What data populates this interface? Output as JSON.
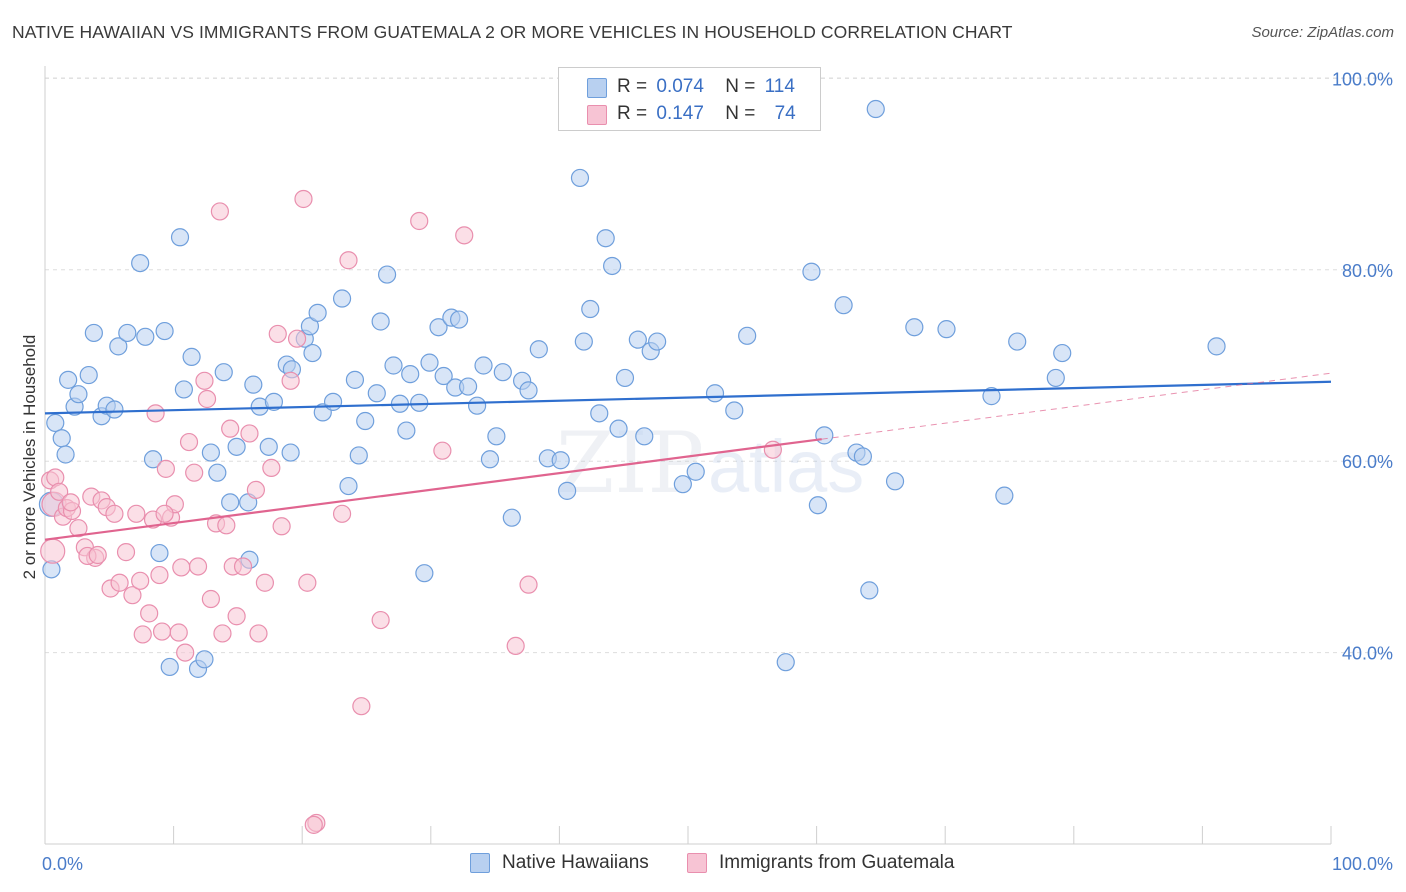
{
  "title": "NATIVE HAWAIIAN VS IMMIGRANTS FROM GUATEMALA 2 OR MORE VEHICLES IN HOUSEHOLD CORRELATION CHART",
  "source": "Source: ZipAtlas.com",
  "watermark": {
    "zip": "ZIP",
    "atlas": "atlas"
  },
  "colors": {
    "blue_fill": "#b8d0f0",
    "blue_stroke": "#6f9fdc",
    "blue_line": "#2f6fce",
    "pink_fill": "#f7c4d4",
    "pink_stroke": "#e98fae",
    "pink_line": "#e0648f",
    "grid": "#dddddd",
    "tick_label": "#4a7cc9"
  },
  "legend": {
    "rows": [
      {
        "r_label": "R =",
        "r_value": "0.074",
        "n_label": "N =",
        "n_value": "114"
      },
      {
        "r_label": "R =",
        "r_value": "0.147",
        "n_label": "N =",
        "n_value": "74"
      }
    ]
  },
  "bottom_legend": [
    "Native Hawaiians",
    "Immigrants from Guatemala"
  ],
  "chart_data": {
    "type": "scatter",
    "title": "NATIVE HAWAIIAN VS IMMIGRANTS FROM GUATEMALA 2 OR MORE VEHICLES IN HOUSEHOLD CORRELATION CHART",
    "xlabel": "",
    "ylabel": "2 or more Vehicles in Household",
    "xlim": [
      0,
      100
    ],
    "ylim": [
      20,
      102
    ],
    "x_tick_labels": [
      "0.0%",
      "100.0%"
    ],
    "y_ticks": [
      40,
      60,
      80,
      100
    ],
    "y_tick_labels": [
      "40.0%",
      "60.0%",
      "80.0%",
      "100.0%"
    ],
    "grid": true,
    "legend_position": "top-center",
    "series": [
      {
        "name": "Native Hawaiians",
        "r": 0.074,
        "n": 114,
        "trend": {
          "x": [
            0,
            100
          ],
          "y": [
            65.0,
            68.3
          ]
        },
        "points": [
          [
            0.5,
            55.5
          ],
          [
            0.8,
            64
          ],
          [
            1.3,
            62.4
          ],
          [
            1.8,
            68.5
          ],
          [
            2.3,
            65.7
          ],
          [
            2.6,
            67
          ],
          [
            3.4,
            69
          ],
          [
            3.8,
            73.4
          ],
          [
            4.4,
            64.7
          ],
          [
            4.8,
            65.8
          ],
          [
            5.4,
            65.4
          ],
          [
            5.7,
            72
          ],
          [
            6.4,
            73.4
          ],
          [
            7.4,
            80.7
          ],
          [
            7.8,
            73
          ],
          [
            8.4,
            60.2
          ],
          [
            8.9,
            50.4
          ],
          [
            9.3,
            73.6
          ],
          [
            9.7,
            38.5
          ],
          [
            10.5,
            83.4
          ],
          [
            10.8,
            67.5
          ],
          [
            11.4,
            70.9
          ],
          [
            11.9,
            38.3
          ],
          [
            12.4,
            39.3
          ],
          [
            12.9,
            60.9
          ],
          [
            13.4,
            58.8
          ],
          [
            13.9,
            69.3
          ],
          [
            14.4,
            55.7
          ],
          [
            14.9,
            61.5
          ],
          [
            15.8,
            55.7
          ],
          [
            15.9,
            49.7
          ],
          [
            16.2,
            68
          ],
          [
            16.7,
            65.7
          ],
          [
            17.4,
            61.5
          ],
          [
            17.8,
            66.2
          ],
          [
            18.8,
            70.1
          ],
          [
            19.1,
            60.9
          ],
          [
            19.2,
            69.6
          ],
          [
            20.2,
            72.8
          ],
          [
            20.6,
            74.1
          ],
          [
            20.8,
            71.3
          ],
          [
            21.2,
            75.5
          ],
          [
            21.6,
            65.1
          ],
          [
            22.4,
            66.2
          ],
          [
            23.1,
            77
          ],
          [
            23.6,
            57.4
          ],
          [
            24.1,
            68.5
          ],
          [
            24.4,
            60.6
          ],
          [
            24.9,
            64.2
          ],
          [
            25.8,
            67.1
          ],
          [
            26.1,
            74.6
          ],
          [
            26.6,
            79.5
          ],
          [
            27.1,
            70
          ],
          [
            27.6,
            66
          ],
          [
            28.1,
            63.2
          ],
          [
            28.4,
            69.1
          ],
          [
            29.1,
            66.1
          ],
          [
            29.5,
            48.3
          ],
          [
            29.9,
            70.3
          ],
          [
            30.6,
            74
          ],
          [
            31.0,
            68.9
          ],
          [
            31.6,
            75
          ],
          [
            31.9,
            67.7
          ],
          [
            32.2,
            74.8
          ],
          [
            32.9,
            67.8
          ],
          [
            33.6,
            65.8
          ],
          [
            34.1,
            70
          ],
          [
            34.6,
            60.2
          ],
          [
            35.1,
            62.6
          ],
          [
            35.6,
            69.3
          ],
          [
            36.3,
            54.1
          ],
          [
            37.1,
            68.4
          ],
          [
            37.6,
            67.4
          ],
          [
            38.4,
            71.7
          ],
          [
            39.1,
            60.3
          ],
          [
            40.1,
            60.1
          ],
          [
            40.6,
            56.9
          ],
          [
            41.6,
            89.6
          ],
          [
            41.9,
            72.5
          ],
          [
            42.4,
            75.9
          ],
          [
            43.1,
            65
          ],
          [
            43.6,
            83.3
          ],
          [
            44.1,
            80.4
          ],
          [
            44.6,
            63.4
          ],
          [
            45.1,
            68.7
          ],
          [
            46.1,
            72.7
          ],
          [
            46.6,
            62.6
          ],
          [
            47.1,
            71.5
          ],
          [
            47.6,
            72.5
          ],
          [
            49.6,
            57.6
          ],
          [
            50.6,
            58.9
          ],
          [
            52.1,
            67.1
          ],
          [
            53.6,
            65.3
          ],
          [
            54.6,
            73.1
          ],
          [
            57.6,
            39
          ],
          [
            59.6,
            79.8
          ],
          [
            60.1,
            55.4
          ],
          [
            60.6,
            62.7
          ],
          [
            62.1,
            76.3
          ],
          [
            63.1,
            60.9
          ],
          [
            63.6,
            60.5
          ],
          [
            64.1,
            46.5
          ],
          [
            64.6,
            96.8
          ],
          [
            66.1,
            57.9
          ],
          [
            67.6,
            74
          ],
          [
            70.1,
            73.8
          ],
          [
            73.6,
            66.8
          ],
          [
            74.6,
            56.4
          ],
          [
            75.6,
            72.5
          ],
          [
            78.6,
            68.7
          ],
          [
            79.1,
            71.3
          ],
          [
            91.1,
            72
          ],
          [
            0.5,
            48.7
          ],
          [
            1.6,
            60.7
          ]
        ]
      },
      {
        "name": "Immigrants from Guatemala",
        "r": 0.147,
        "n": 74,
        "trend": {
          "x": [
            0,
            60.4
          ],
          "y": [
            51.8,
            62.3
          ]
        },
        "trend_extension": {
          "x": [
            60.4,
            100
          ],
          "y": [
            62.3,
            69.2
          ]
        },
        "points": [
          [
            0.4,
            58
          ],
          [
            0.6,
            50.6
          ],
          [
            0.7,
            55.5
          ],
          [
            0.8,
            58.3
          ],
          [
            1.1,
            56.8
          ],
          [
            1.4,
            54.2
          ],
          [
            1.7,
            55.1
          ],
          [
            2.1,
            54.8
          ],
          [
            2.6,
            53
          ],
          [
            3.1,
            51
          ],
          [
            3.6,
            56.3
          ],
          [
            3.9,
            49.9
          ],
          [
            4.4,
            55.9
          ],
          [
            4.8,
            55.2
          ],
          [
            5.1,
            46.7
          ],
          [
            5.4,
            54.5
          ],
          [
            5.8,
            47.3
          ],
          [
            6.3,
            50.5
          ],
          [
            6.8,
            46
          ],
          [
            7.1,
            54.5
          ],
          [
            7.4,
            47.5
          ],
          [
            7.6,
            41.9
          ],
          [
            8.1,
            44.1
          ],
          [
            8.4,
            53.9
          ],
          [
            8.6,
            65
          ],
          [
            8.9,
            48.1
          ],
          [
            9.1,
            42.2
          ],
          [
            9.4,
            59.2
          ],
          [
            9.8,
            54.1
          ],
          [
            10.1,
            55.5
          ],
          [
            10.4,
            42.1
          ],
          [
            10.6,
            48.9
          ],
          [
            10.9,
            40
          ],
          [
            11.2,
            62
          ],
          [
            11.6,
            58.8
          ],
          [
            11.9,
            49
          ],
          [
            12.4,
            68.4
          ],
          [
            12.6,
            66.5
          ],
          [
            12.9,
            45.6
          ],
          [
            13.3,
            53.5
          ],
          [
            13.8,
            42
          ],
          [
            14.1,
            53.3
          ],
          [
            14.4,
            63.4
          ],
          [
            14.6,
            49
          ],
          [
            14.9,
            43.8
          ],
          [
            15.4,
            49
          ],
          [
            15.9,
            62.9
          ],
          [
            16.4,
            57
          ],
          [
            16.6,
            42
          ],
          [
            17.1,
            47.3
          ],
          [
            17.6,
            59.3
          ],
          [
            18.1,
            73.3
          ],
          [
            18.4,
            53.2
          ],
          [
            19.1,
            68.4
          ],
          [
            19.6,
            72.8
          ],
          [
            20.1,
            87.4
          ],
          [
            20.4,
            47.3
          ],
          [
            21.1,
            22.2
          ],
          [
            23.1,
            54.5
          ],
          [
            23.6,
            81
          ],
          [
            24.6,
            34.4
          ],
          [
            26.1,
            43.4
          ],
          [
            29.1,
            85.1
          ],
          [
            30.9,
            61.1
          ],
          [
            32.6,
            83.6
          ],
          [
            36.6,
            40.7
          ],
          [
            37.6,
            47.1
          ],
          [
            56.6,
            61.2
          ],
          [
            13.6,
            86.1
          ],
          [
            9.3,
            54.5
          ],
          [
            2.0,
            55.7
          ],
          [
            3.3,
            50.1
          ],
          [
            4.1,
            50.2
          ],
          [
            20.9,
            22
          ]
        ]
      }
    ]
  }
}
